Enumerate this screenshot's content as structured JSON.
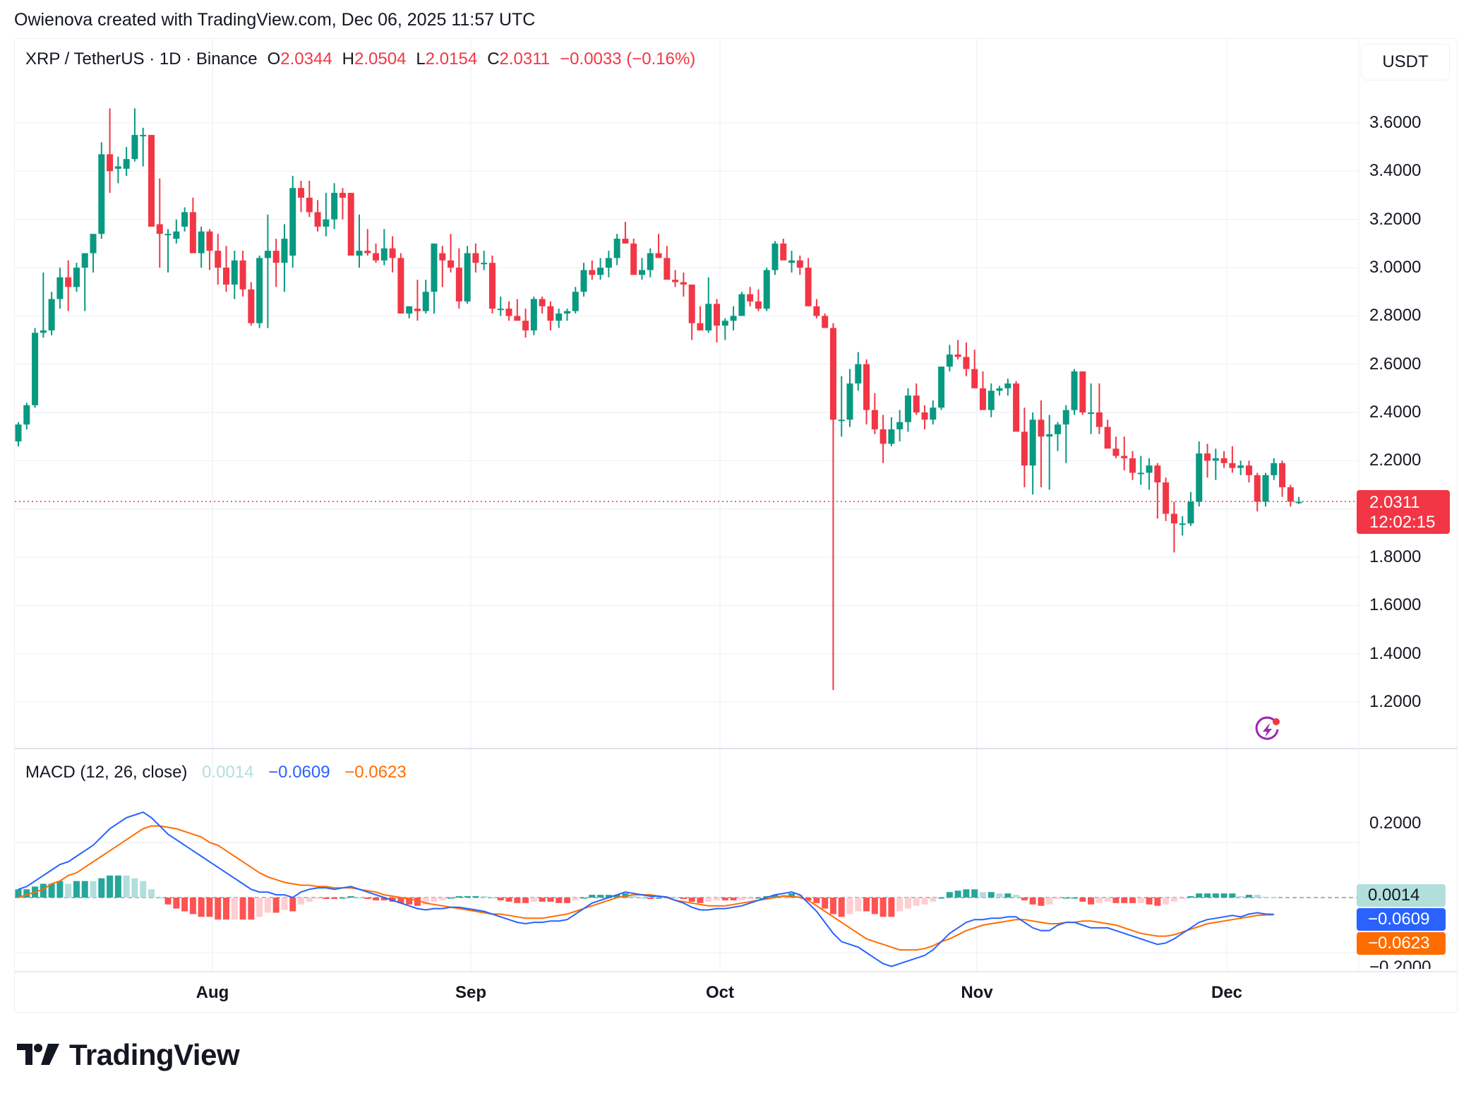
{
  "header": {
    "credit": "Owienova created with TradingView.com, Dec 06, 2025 11:57 UTC"
  },
  "legend": {
    "symbol": "XRP / TetherUS · 1D · Binance",
    "open_label": "O",
    "open": "2.0344",
    "high_label": "H",
    "high": "2.0504",
    "low_label": "L",
    "low": "2.0154",
    "close_label": "C",
    "close": "2.0311",
    "change": "−0.0033 (−0.16%)"
  },
  "currency_button": "USDT",
  "price_axis": {
    "ticks": [
      "3.6000",
      "3.4000",
      "3.2000",
      "3.0000",
      "2.8000",
      "2.6000",
      "2.4000",
      "2.2000",
      "1.8000",
      "1.6000",
      "1.4000",
      "1.2000"
    ]
  },
  "last_price": {
    "value": "2.0311",
    "countdown": "12:02:15"
  },
  "macd": {
    "title": "MACD (12, 26, close)",
    "hist_value": "0.0014",
    "macd_value": "−0.0609",
    "signal_value": "−0.0623",
    "axis_ticks": [
      "0.2000",
      "−0.2000"
    ]
  },
  "time_axis": [
    "Aug",
    "Sep",
    "Oct",
    "Nov",
    "Dec"
  ],
  "brand": "TradingView",
  "colors": {
    "up": "#089981",
    "down": "#f23645",
    "hist_up_strong": "#26a69a",
    "hist_up_weak": "#b2dfdb",
    "hist_down_strong": "#ff5252",
    "hist_down_weak": "#ffcdd2",
    "macd_line": "#2962ff",
    "signal_line": "#ff6d00",
    "grid": "#f0f3fa"
  },
  "chart_data": {
    "type": "candlestick",
    "title": "XRP / TetherUS · 1D · Binance",
    "xlabel": "",
    "ylabel": "USDT",
    "ylim": [
      1.05,
      3.85
    ],
    "x_ticks": [
      "Aug",
      "Sep",
      "Oct",
      "Nov",
      "Dec"
    ],
    "start_date": "2025-07-08",
    "end_date": "2025-12-06",
    "ohlc": [
      [
        2.28,
        2.36,
        2.26,
        2.35
      ],
      [
        2.35,
        2.44,
        2.33,
        2.43
      ],
      [
        2.43,
        2.75,
        2.42,
        2.73
      ],
      [
        2.73,
        2.98,
        2.71,
        2.74
      ],
      [
        2.74,
        2.9,
        2.72,
        2.87
      ],
      [
        2.87,
        3.0,
        2.83,
        2.96
      ],
      [
        2.96,
        3.03,
        2.82,
        2.92
      ],
      [
        2.92,
        3.02,
        2.9,
        3.0
      ],
      [
        3.0,
        3.05,
        2.82,
        3.06
      ],
      [
        3.06,
        3.12,
        2.98,
        3.14
      ],
      [
        3.14,
        3.52,
        3.12,
        3.47
      ],
      [
        3.47,
        3.66,
        3.31,
        3.4
      ],
      [
        3.41,
        3.46,
        3.35,
        3.42
      ],
      [
        3.41,
        3.5,
        3.38,
        3.45
      ],
      [
        3.45,
        3.66,
        3.44,
        3.55
      ],
      [
        3.55,
        3.58,
        3.42,
        3.55
      ],
      [
        3.55,
        3.55,
        3.17,
        3.17
      ],
      [
        3.18,
        3.37,
        3.0,
        3.14
      ],
      [
        3.14,
        3.16,
        2.98,
        3.14
      ],
      [
        3.12,
        3.2,
        3.1,
        3.15
      ],
      [
        3.17,
        3.25,
        3.15,
        3.23
      ],
      [
        3.23,
        3.29,
        3.06,
        3.06
      ],
      [
        3.06,
        3.17,
        3.0,
        3.15
      ],
      [
        3.15,
        3.16,
        2.99,
        3.07
      ],
      [
        3.07,
        3.14,
        2.93,
        3.0
      ],
      [
        3.0,
        3.09,
        2.9,
        2.93
      ],
      [
        2.93,
        3.07,
        2.87,
        3.03
      ],
      [
        3.03,
        3.07,
        2.88,
        2.91
      ],
      [
        2.91,
        2.94,
        2.76,
        2.77
      ],
      [
        2.77,
        3.05,
        2.75,
        3.04
      ],
      [
        3.04,
        3.22,
        2.75,
        3.07
      ],
      [
        3.07,
        3.12,
        2.92,
        3.02
      ],
      [
        3.02,
        3.18,
        2.9,
        3.12
      ],
      [
        3.05,
        3.38,
        3.0,
        3.33
      ],
      [
        3.33,
        3.36,
        3.23,
        3.29
      ],
      [
        3.29,
        3.36,
        3.21,
        3.23
      ],
      [
        3.23,
        3.28,
        3.15,
        3.17
      ],
      [
        3.17,
        3.31,
        3.13,
        3.2
      ],
      [
        3.2,
        3.35,
        3.16,
        3.31
      ],
      [
        3.31,
        3.33,
        3.2,
        3.29
      ],
      [
        3.31,
        3.31,
        3.07,
        3.05
      ],
      [
        3.05,
        3.22,
        3.0,
        3.07
      ],
      [
        3.07,
        3.16,
        3.05,
        3.06
      ],
      [
        3.06,
        3.1,
        3.02,
        3.03
      ],
      [
        3.03,
        3.16,
        3.01,
        3.08
      ],
      [
        3.08,
        3.13,
        2.98,
        3.04
      ],
      [
        3.04,
        3.06,
        2.81,
        2.81
      ],
      [
        2.81,
        2.84,
        2.79,
        2.84
      ],
      [
        2.83,
        2.95,
        2.78,
        2.82
      ],
      [
        2.82,
        2.95,
        2.81,
        2.9
      ],
      [
        2.9,
        3.1,
        2.81,
        3.1
      ],
      [
        3.06,
        3.09,
        2.92,
        3.03
      ],
      [
        3.03,
        3.14,
        2.98,
        3.0
      ],
      [
        3.0,
        3.08,
        2.83,
        2.86
      ],
      [
        2.86,
        3.09,
        2.85,
        3.06
      ],
      [
        3.06,
        3.1,
        2.98,
        3.02
      ],
      [
        3.02,
        3.07,
        2.99,
        3.02
      ],
      [
        3.02,
        3.05,
        2.81,
        2.83
      ],
      [
        2.83,
        2.88,
        2.8,
        2.83
      ],
      [
        2.83,
        2.86,
        2.78,
        2.8
      ],
      [
        2.8,
        2.87,
        2.78,
        2.78
      ],
      [
        2.78,
        2.83,
        2.71,
        2.74
      ],
      [
        2.74,
        2.88,
        2.72,
        2.87
      ],
      [
        2.87,
        2.88,
        2.81,
        2.84
      ],
      [
        2.84,
        2.86,
        2.74,
        2.78
      ],
      [
        2.78,
        2.83,
        2.75,
        2.81
      ],
      [
        2.81,
        2.83,
        2.78,
        2.82
      ],
      [
        2.82,
        2.92,
        2.81,
        2.9
      ],
      [
        2.9,
        3.02,
        2.88,
        2.99
      ],
      [
        2.99,
        3.03,
        2.95,
        2.97
      ],
      [
        2.97,
        3.04,
        2.95,
        3.0
      ],
      [
        3.0,
        3.07,
        2.96,
        3.04
      ],
      [
        3.04,
        3.14,
        3.01,
        3.12
      ],
      [
        3.12,
        3.19,
        3.1,
        3.1
      ],
      [
        3.1,
        3.12,
        3.02,
        2.97
      ],
      [
        2.97,
        3.04,
        2.95,
        2.99
      ],
      [
        2.99,
        3.08,
        2.96,
        3.06
      ],
      [
        3.06,
        3.14,
        3.04,
        3.04
      ],
      [
        3.04,
        3.09,
        2.98,
        2.95
      ],
      [
        2.95,
        2.99,
        2.92,
        2.94
      ],
      [
        2.94,
        2.98,
        2.88,
        2.93
      ],
      [
        2.93,
        2.93,
        2.7,
        2.77
      ],
      [
        2.77,
        2.84,
        2.75,
        2.74
      ],
      [
        2.74,
        2.96,
        2.73,
        2.85
      ],
      [
        2.85,
        2.87,
        2.69,
        2.76
      ],
      [
        2.76,
        2.79,
        2.7,
        2.78
      ],
      [
        2.78,
        2.84,
        2.74,
        2.8
      ],
      [
        2.8,
        2.9,
        2.8,
        2.89
      ],
      [
        2.89,
        2.92,
        2.84,
        2.86
      ],
      [
        2.86,
        2.91,
        2.82,
        2.83
      ],
      [
        2.83,
        3.0,
        2.82,
        2.99
      ],
      [
        2.99,
        3.11,
        2.97,
        3.1
      ],
      [
        3.1,
        3.12,
        3.04,
        3.03
      ],
      [
        3.02,
        3.07,
        2.98,
        3.03
      ],
      [
        3.03,
        3.05,
        2.97,
        3.0
      ],
      [
        3.0,
        3.04,
        2.84,
        2.84
      ],
      [
        2.84,
        2.87,
        2.79,
        2.8
      ],
      [
        2.8,
        2.81,
        2.76,
        2.75
      ],
      [
        2.75,
        2.77,
        1.25,
        2.37
      ],
      [
        2.37,
        2.55,
        2.3,
        2.37
      ],
      [
        2.37,
        2.58,
        2.34,
        2.52
      ],
      [
        2.52,
        2.65,
        2.49,
        2.6
      ],
      [
        2.6,
        2.62,
        2.35,
        2.41
      ],
      [
        2.41,
        2.48,
        2.31,
        2.33
      ],
      [
        2.33,
        2.39,
        2.19,
        2.27
      ],
      [
        2.27,
        2.38,
        2.26,
        2.33
      ],
      [
        2.33,
        2.41,
        2.28,
        2.36
      ],
      [
        2.36,
        2.5,
        2.32,
        2.47
      ],
      [
        2.47,
        2.52,
        2.39,
        2.4
      ],
      [
        2.4,
        2.43,
        2.33,
        2.37
      ],
      [
        2.37,
        2.45,
        2.35,
        2.42
      ],
      [
        2.42,
        2.59,
        2.41,
        2.59
      ],
      [
        2.59,
        2.68,
        2.57,
        2.64
      ],
      [
        2.64,
        2.7,
        2.62,
        2.63
      ],
      [
        2.63,
        2.69,
        2.55,
        2.58
      ],
      [
        2.58,
        2.66,
        2.53,
        2.5
      ],
      [
        2.5,
        2.57,
        2.41,
        2.41
      ],
      [
        2.41,
        2.52,
        2.38,
        2.49
      ],
      [
        2.49,
        2.51,
        2.47,
        2.5
      ],
      [
        2.5,
        2.54,
        2.47,
        2.52
      ],
      [
        2.52,
        2.53,
        2.34,
        2.32
      ],
      [
        2.32,
        2.42,
        2.09,
        2.18
      ],
      [
        2.18,
        2.4,
        2.06,
        2.37
      ],
      [
        2.37,
        2.45,
        2.09,
        2.3
      ],
      [
        2.3,
        2.39,
        2.08,
        2.31
      ],
      [
        2.31,
        2.36,
        2.24,
        2.35
      ],
      [
        2.35,
        2.43,
        2.19,
        2.41
      ],
      [
        2.41,
        2.58,
        2.39,
        2.57
      ],
      [
        2.57,
        2.57,
        2.39,
        2.4
      ],
      [
        2.4,
        2.52,
        2.31,
        2.4
      ],
      [
        2.4,
        2.52,
        2.31,
        2.34
      ],
      [
        2.34,
        2.37,
        2.28,
        2.25
      ],
      [
        2.25,
        2.3,
        2.21,
        2.22
      ],
      [
        2.22,
        2.3,
        2.16,
        2.21
      ],
      [
        2.21,
        2.24,
        2.12,
        2.15
      ],
      [
        2.15,
        2.22,
        2.1,
        2.15
      ],
      [
        2.15,
        2.21,
        2.08,
        2.18
      ],
      [
        2.18,
        2.19,
        1.96,
        2.11
      ],
      [
        2.11,
        2.13,
        1.95,
        1.98
      ],
      [
        1.98,
        2.03,
        1.82,
        1.94
      ],
      [
        1.94,
        1.97,
        1.89,
        1.94
      ],
      [
        1.94,
        2.07,
        1.93,
        2.03
      ],
      [
        2.03,
        2.28,
        2.01,
        2.23
      ],
      [
        2.23,
        2.27,
        2.13,
        2.2
      ],
      [
        2.2,
        2.25,
        2.12,
        2.21
      ],
      [
        2.21,
        2.24,
        2.17,
        2.19
      ],
      [
        2.19,
        2.26,
        2.15,
        2.17
      ],
      [
        2.17,
        2.2,
        2.14,
        2.18
      ],
      [
        2.18,
        2.2,
        2.11,
        2.14
      ],
      [
        2.14,
        2.15,
        1.99,
        2.03
      ],
      [
        2.03,
        2.15,
        2.01,
        2.14
      ],
      [
        2.14,
        2.21,
        2.12,
        2.19
      ],
      [
        2.19,
        2.2,
        2.05,
        2.09
      ],
      [
        2.09,
        2.1,
        2.01,
        2.03
      ],
      [
        2.03,
        2.05,
        2.02,
        2.03
      ]
    ],
    "macd": {
      "ylim": [
        -0.3,
        0.4
      ],
      "ticks": [
        0.2,
        -0.2
      ],
      "macd_line": [
        0.03,
        0.04,
        0.06,
        0.08,
        0.1,
        0.12,
        0.13,
        0.15,
        0.17,
        0.19,
        0.22,
        0.25,
        0.27,
        0.29,
        0.3,
        0.31,
        0.29,
        0.26,
        0.23,
        0.21,
        0.19,
        0.17,
        0.15,
        0.13,
        0.11,
        0.09,
        0.07,
        0.05,
        0.03,
        0.02,
        0.02,
        0.01,
        0.01,
        0.0,
        0.02,
        0.03,
        0.035,
        0.035,
        0.03,
        0.035,
        0.04,
        0.03,
        0.02,
        0.01,
        0.0,
        -0.01,
        -0.02,
        -0.03,
        -0.04,
        -0.045,
        -0.04,
        -0.04,
        -0.035,
        -0.035,
        -0.04,
        -0.045,
        -0.05,
        -0.06,
        -0.07,
        -0.08,
        -0.09,
        -0.095,
        -0.09,
        -0.09,
        -0.085,
        -0.085,
        -0.08,
        -0.06,
        -0.04,
        -0.02,
        -0.01,
        0.0,
        0.01,
        0.02,
        0.015,
        0.01,
        0.005,
        0.005,
        0.002,
        -0.01,
        -0.02,
        -0.035,
        -0.045,
        -0.045,
        -0.04,
        -0.04,
        -0.035,
        -0.03,
        -0.02,
        -0.01,
        0.0,
        0.01,
        0.015,
        0.02,
        0.01,
        -0.02,
        -0.05,
        -0.09,
        -0.13,
        -0.16,
        -0.17,
        -0.18,
        -0.2,
        -0.22,
        -0.24,
        -0.25,
        -0.24,
        -0.23,
        -0.22,
        -0.21,
        -0.19,
        -0.16,
        -0.13,
        -0.11,
        -0.09,
        -0.08,
        -0.08,
        -0.075,
        -0.075,
        -0.07,
        -0.07,
        -0.09,
        -0.11,
        -0.12,
        -0.12,
        -0.1,
        -0.09,
        -0.09,
        -0.1,
        -0.11,
        -0.11,
        -0.11,
        -0.12,
        -0.13,
        -0.14,
        -0.15,
        -0.16,
        -0.17,
        -0.165,
        -0.15,
        -0.13,
        -0.11,
        -0.09,
        -0.08,
        -0.075,
        -0.07,
        -0.065,
        -0.07,
        -0.06,
        -0.055,
        -0.06,
        -0.061
      ],
      "signal_line": [
        0.0,
        0.01,
        0.02,
        0.03,
        0.05,
        0.06,
        0.08,
        0.09,
        0.11,
        0.13,
        0.15,
        0.17,
        0.19,
        0.21,
        0.23,
        0.25,
        0.26,
        0.26,
        0.255,
        0.25,
        0.24,
        0.23,
        0.22,
        0.2,
        0.19,
        0.17,
        0.15,
        0.13,
        0.11,
        0.09,
        0.075,
        0.065,
        0.055,
        0.05,
        0.045,
        0.045,
        0.04,
        0.04,
        0.035,
        0.035,
        0.035,
        0.03,
        0.025,
        0.02,
        0.01,
        0.005,
        0.0,
        -0.005,
        -0.01,
        -0.02,
        -0.025,
        -0.03,
        -0.035,
        -0.04,
        -0.045,
        -0.05,
        -0.055,
        -0.06,
        -0.06,
        -0.065,
        -0.07,
        -0.075,
        -0.075,
        -0.075,
        -0.07,
        -0.065,
        -0.06,
        -0.05,
        -0.04,
        -0.03,
        -0.02,
        -0.01,
        0.0,
        0.005,
        0.01,
        0.01,
        0.01,
        0.005,
        0.0,
        -0.01,
        -0.015,
        -0.02,
        -0.025,
        -0.03,
        -0.03,
        -0.03,
        -0.025,
        -0.02,
        -0.015,
        -0.01,
        -0.005,
        0.0,
        0.005,
        0.005,
        0.0,
        -0.01,
        -0.03,
        -0.05,
        -0.07,
        -0.09,
        -0.11,
        -0.13,
        -0.15,
        -0.16,
        -0.17,
        -0.18,
        -0.19,
        -0.19,
        -0.19,
        -0.185,
        -0.175,
        -0.16,
        -0.15,
        -0.135,
        -0.12,
        -0.11,
        -0.1,
        -0.095,
        -0.09,
        -0.085,
        -0.08,
        -0.08,
        -0.085,
        -0.09,
        -0.095,
        -0.095,
        -0.09,
        -0.09,
        -0.085,
        -0.085,
        -0.09,
        -0.095,
        -0.1,
        -0.11,
        -0.12,
        -0.13,
        -0.135,
        -0.14,
        -0.14,
        -0.135,
        -0.125,
        -0.115,
        -0.105,
        -0.095,
        -0.09,
        -0.085,
        -0.08,
        -0.075,
        -0.07,
        -0.065,
        -0.063,
        -0.0623
      ]
    }
  }
}
